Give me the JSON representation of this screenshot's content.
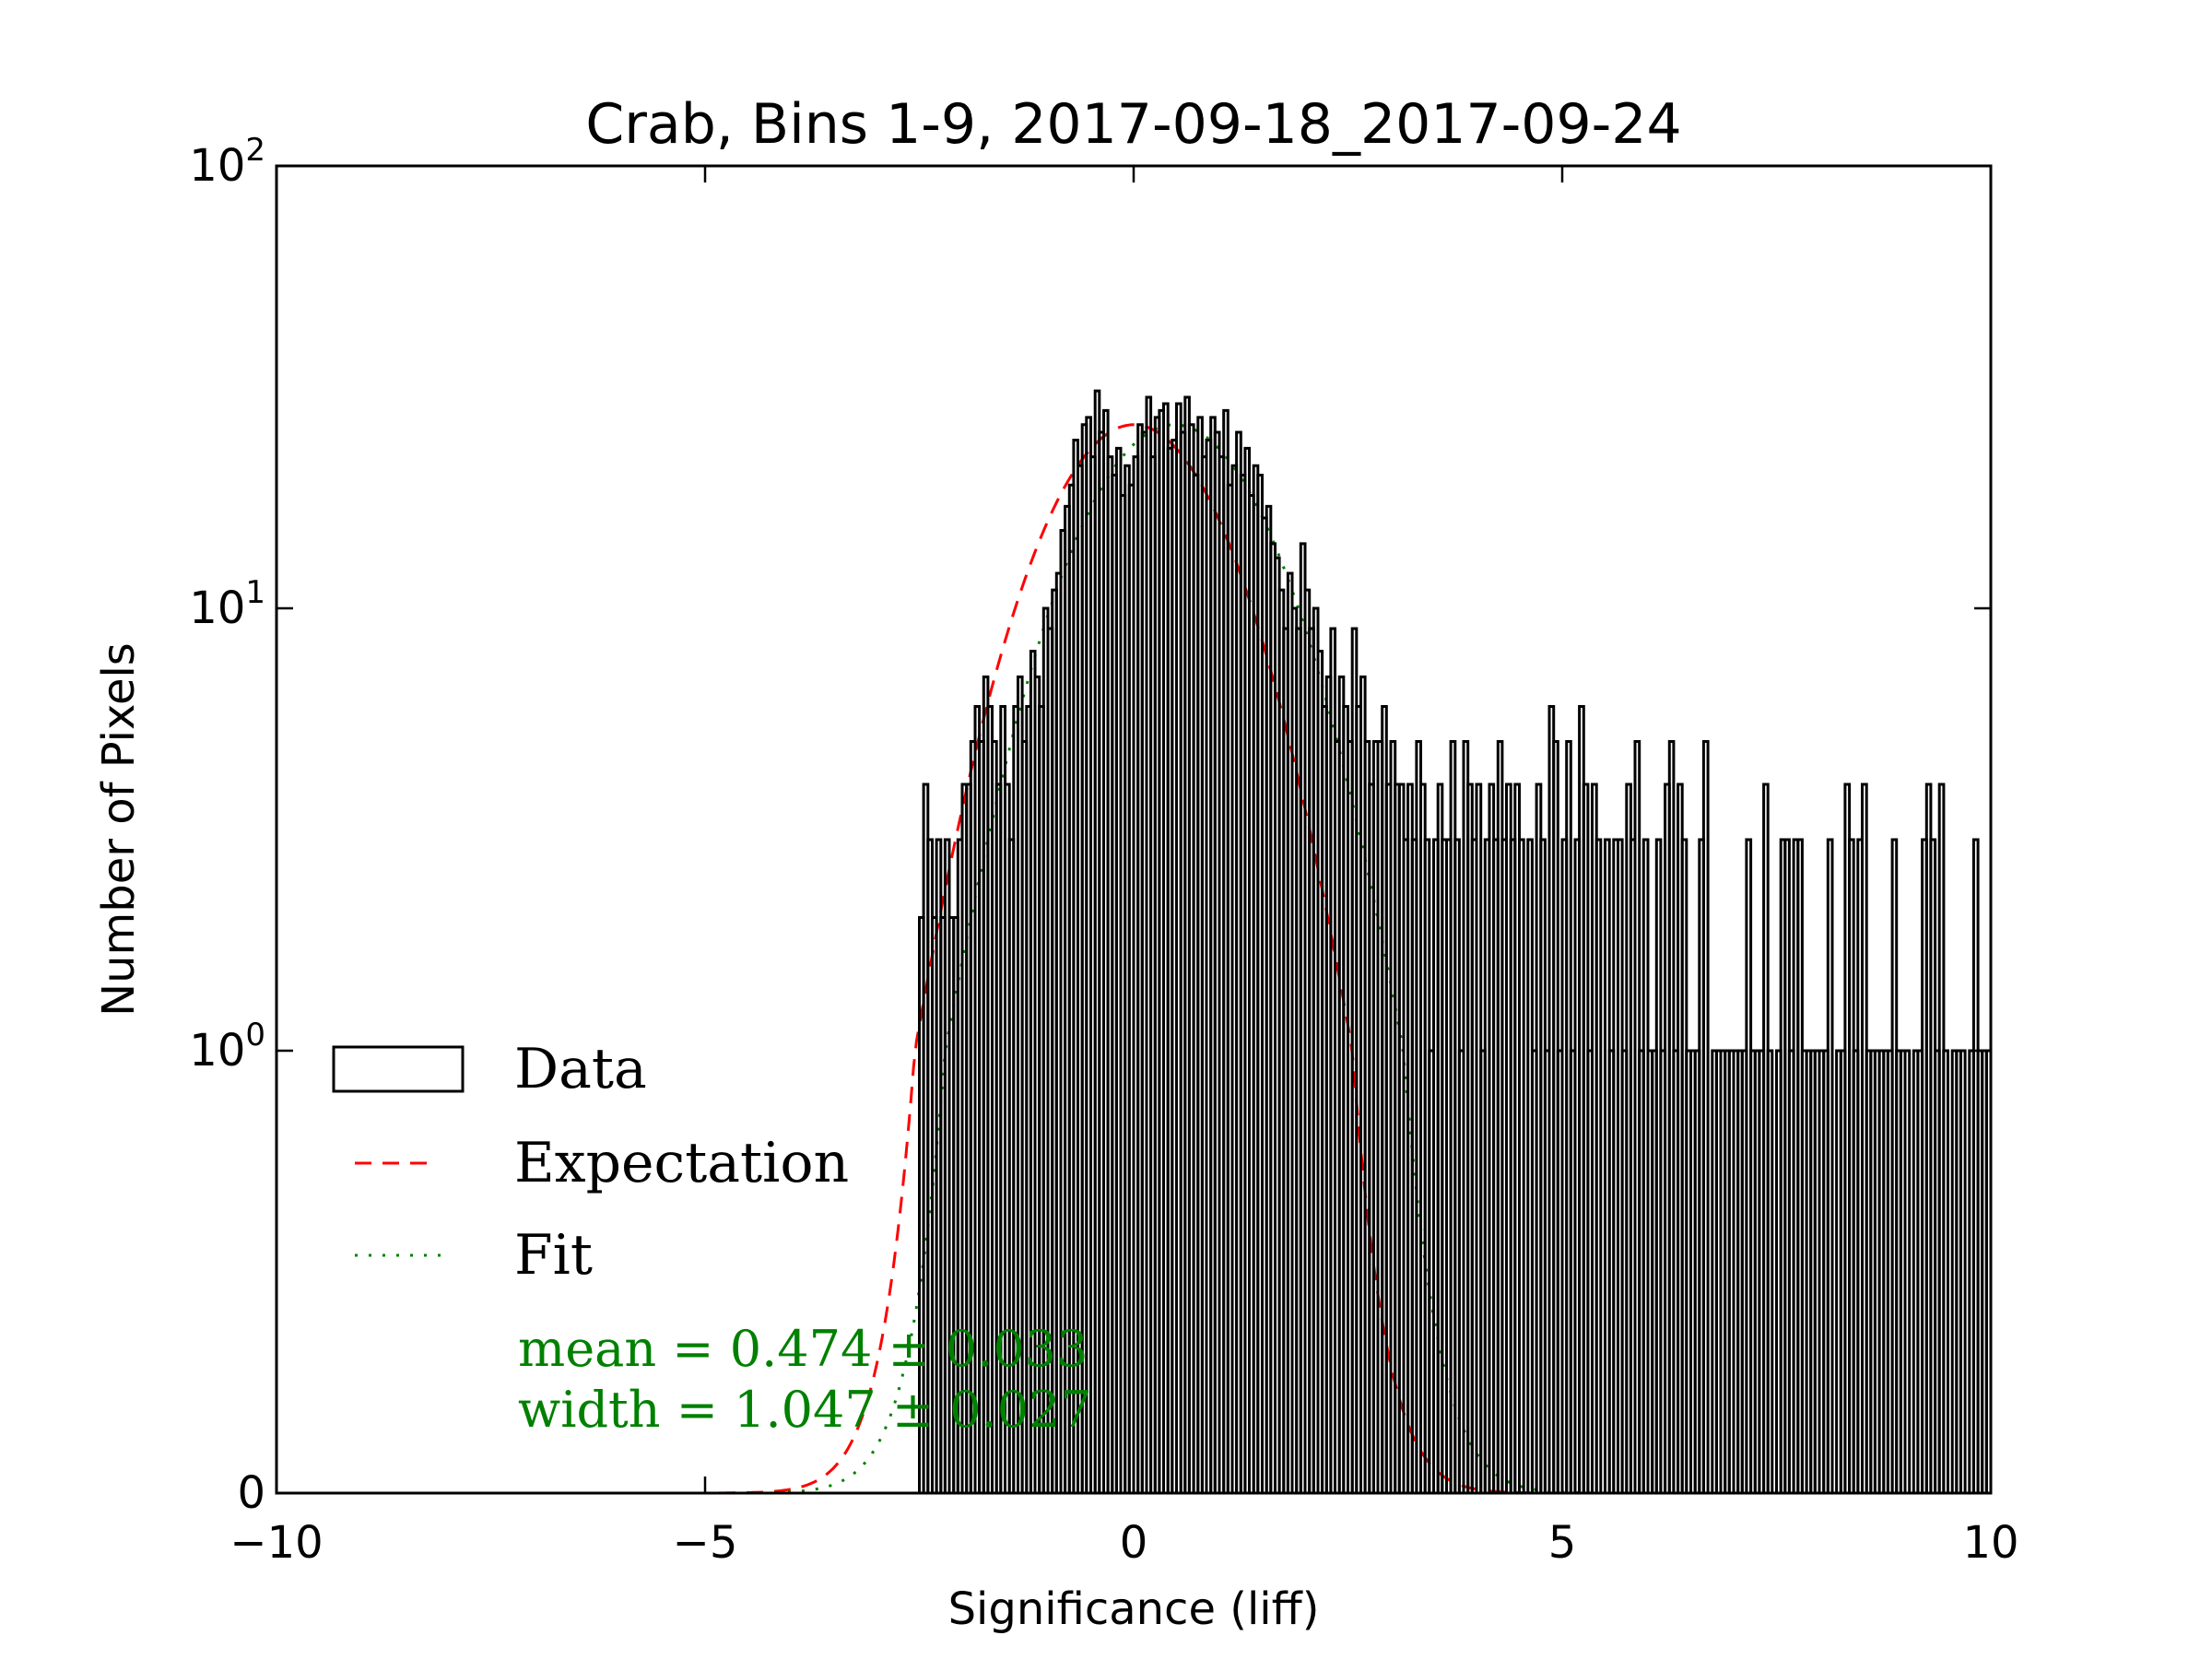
{
  "chart_data": {
    "type": "histogram",
    "title": "Crab, Bins 1-9, 2017-09-18_2017-09-24",
    "xlabel": "Significance (liff)",
    "ylabel": "Number of Pixels",
    "xlim": [
      -10,
      10
    ],
    "yscale": "symlog",
    "ylim": [
      0,
      100
    ],
    "x_ticks": [
      {
        "value": -10,
        "label": "−10"
      },
      {
        "value": -5,
        "label": "−5"
      },
      {
        "value": 0,
        "label": "0"
      },
      {
        "value": 5,
        "label": "5"
      },
      {
        "value": 10,
        "label": "10"
      }
    ],
    "y_ticks": [
      {
        "value": 0,
        "base": "0",
        "exp": ""
      },
      {
        "value": 1,
        "base": "10",
        "exp": "0"
      },
      {
        "value": 10,
        "base": "10",
        "exp": "1"
      },
      {
        "value": 100,
        "base": "10",
        "exp": "2"
      }
    ],
    "legend": {
      "position": "lower-left",
      "entries": [
        {
          "label": "Data",
          "style": "step",
          "color": "#000000"
        },
        {
          "label": "Expectation",
          "style": "dashed",
          "color": "#ff0000"
        },
        {
          "label": "Fit",
          "style": "dashdot",
          "color": "#008000"
        }
      ]
    },
    "annotations": {
      "mean": "mean = 0.474 ± 0.033",
      "width": "width = 1.047 ± 0.027",
      "color": "#008000"
    },
    "series": [
      {
        "name": "Data",
        "kind": "step-histogram",
        "color": "#000000",
        "bin_width": 0.05,
        "bins": [
          [
            -2.5,
            2
          ],
          [
            -2.45,
            4
          ],
          [
            -2.4,
            3
          ],
          [
            -2.35,
            2
          ],
          [
            -2.3,
            3
          ],
          [
            -2.25,
            2
          ],
          [
            -2.2,
            3
          ],
          [
            -2.15,
            2
          ],
          [
            -2.1,
            2
          ],
          [
            -2.05,
            3
          ],
          [
            -2.0,
            4
          ],
          [
            -1.95,
            4
          ],
          [
            -1.9,
            5
          ],
          [
            -1.85,
            6
          ],
          [
            -1.8,
            5
          ],
          [
            -1.75,
            7
          ],
          [
            -1.7,
            6
          ],
          [
            -1.65,
            5
          ],
          [
            -1.6,
            4
          ],
          [
            -1.55,
            6
          ],
          [
            -1.5,
            4
          ],
          [
            -1.45,
            3
          ],
          [
            -1.4,
            6
          ],
          [
            -1.35,
            7
          ],
          [
            -1.3,
            5
          ],
          [
            -1.25,
            6
          ],
          [
            -1.2,
            8
          ],
          [
            -1.15,
            7
          ],
          [
            -1.1,
            6
          ],
          [
            -1.05,
            10
          ],
          [
            -1.0,
            9
          ],
          [
            -0.95,
            11
          ],
          [
            -0.9,
            12
          ],
          [
            -0.85,
            15
          ],
          [
            -0.8,
            17
          ],
          [
            -0.75,
            19
          ],
          [
            -0.7,
            24
          ],
          [
            -0.65,
            21
          ],
          [
            -0.6,
            26
          ],
          [
            -0.55,
            27
          ],
          [
            -0.5,
            22
          ],
          [
            -0.45,
            31
          ],
          [
            -0.4,
            25
          ],
          [
            -0.35,
            28
          ],
          [
            -0.3,
            22
          ],
          [
            -0.25,
            20
          ],
          [
            -0.2,
            23
          ],
          [
            -0.15,
            18
          ],
          [
            -0.1,
            21
          ],
          [
            -0.05,
            19
          ],
          [
            0.0,
            22
          ],
          [
            0.05,
            26
          ],
          [
            0.1,
            25
          ],
          [
            0.15,
            30
          ],
          [
            0.2,
            22
          ],
          [
            0.25,
            27
          ],
          [
            0.3,
            28
          ],
          [
            0.35,
            29
          ],
          [
            0.4,
            23
          ],
          [
            0.45,
            24
          ],
          [
            0.5,
            29
          ],
          [
            0.55,
            25
          ],
          [
            0.6,
            30
          ],
          [
            0.65,
            26
          ],
          [
            0.7,
            20
          ],
          [
            0.75,
            27
          ],
          [
            0.8,
            22
          ],
          [
            0.85,
            24
          ],
          [
            0.9,
            27
          ],
          [
            0.95,
            25
          ],
          [
            1.0,
            22
          ],
          [
            1.05,
            28
          ],
          [
            1.1,
            19
          ],
          [
            1.15,
            21
          ],
          [
            1.2,
            25
          ],
          [
            1.25,
            20
          ],
          [
            1.3,
            23
          ],
          [
            1.35,
            18
          ],
          [
            1.4,
            21
          ],
          [
            1.45,
            20
          ],
          [
            1.5,
            16
          ],
          [
            1.55,
            17
          ],
          [
            1.6,
            14
          ],
          [
            1.65,
            13
          ],
          [
            1.7,
            11
          ],
          [
            1.75,
            9
          ],
          [
            1.8,
            12
          ],
          [
            1.85,
            10
          ],
          [
            1.9,
            9
          ],
          [
            1.95,
            14
          ],
          [
            2.0,
            11
          ],
          [
            2.05,
            9
          ],
          [
            2.1,
            10
          ],
          [
            2.15,
            8
          ],
          [
            2.2,
            6
          ],
          [
            2.25,
            7
          ],
          [
            2.3,
            9
          ],
          [
            2.35,
            5
          ],
          [
            2.4,
            7
          ],
          [
            2.45,
            6
          ],
          [
            2.5,
            5
          ],
          [
            2.55,
            9
          ],
          [
            2.6,
            6
          ],
          [
            2.65,
            7
          ],
          [
            2.7,
            5
          ],
          [
            2.75,
            4
          ],
          [
            2.8,
            5
          ],
          [
            2.85,
            5
          ],
          [
            2.9,
            6
          ],
          [
            2.95,
            4
          ],
          [
            3.0,
            5
          ],
          [
            3.05,
            4
          ],
          [
            3.1,
            4
          ],
          [
            3.15,
            3
          ],
          [
            3.2,
            4
          ],
          [
            3.25,
            3
          ],
          [
            3.3,
            5
          ],
          [
            3.35,
            4
          ],
          [
            3.4,
            3
          ],
          [
            3.45,
            1
          ],
          [
            3.5,
            3
          ],
          [
            3.55,
            4
          ],
          [
            3.6,
            3
          ],
          [
            3.65,
            3
          ],
          [
            3.7,
            5
          ],
          [
            3.75,
            3
          ],
          [
            3.8,
            1
          ],
          [
            3.85,
            5
          ],
          [
            3.9,
            4
          ],
          [
            3.95,
            3
          ],
          [
            4.0,
            4
          ],
          [
            4.05,
            1
          ],
          [
            4.1,
            3
          ],
          [
            4.15,
            4
          ],
          [
            4.2,
            3
          ],
          [
            4.25,
            5
          ],
          [
            4.3,
            3
          ],
          [
            4.35,
            4
          ],
          [
            4.4,
            3
          ],
          [
            4.45,
            4
          ],
          [
            4.5,
            3
          ],
          [
            4.55,
            0
          ],
          [
            4.6,
            3
          ],
          [
            4.65,
            1
          ],
          [
            4.7,
            4
          ],
          [
            4.75,
            3
          ],
          [
            4.8,
            1
          ],
          [
            4.85,
            6
          ],
          [
            4.9,
            5
          ],
          [
            4.95,
            1
          ],
          [
            5.0,
            3
          ],
          [
            5.05,
            5
          ],
          [
            5.1,
            1
          ],
          [
            5.15,
            3
          ],
          [
            5.2,
            6
          ],
          [
            5.25,
            4
          ],
          [
            5.3,
            1
          ],
          [
            5.35,
            4
          ],
          [
            5.4,
            3
          ],
          [
            5.45,
            0
          ],
          [
            5.5,
            3
          ],
          [
            5.55,
            1
          ],
          [
            5.6,
            3
          ],
          [
            5.65,
            3
          ],
          [
            5.7,
            1
          ],
          [
            5.75,
            4
          ],
          [
            5.8,
            3
          ],
          [
            5.85,
            5
          ],
          [
            5.9,
            1
          ],
          [
            5.95,
            3
          ],
          [
            6.0,
            1
          ],
          [
            6.05,
            1
          ],
          [
            6.1,
            3
          ],
          [
            6.15,
            1
          ],
          [
            6.2,
            4
          ],
          [
            6.25,
            5
          ],
          [
            6.3,
            1
          ],
          [
            6.35,
            4
          ],
          [
            6.4,
            3
          ],
          [
            6.45,
            1
          ],
          [
            6.5,
            1
          ],
          [
            6.55,
            1
          ],
          [
            6.6,
            3
          ],
          [
            6.65,
            5
          ],
          [
            6.7,
            0
          ],
          [
            6.75,
            1
          ],
          [
            6.8,
            1
          ],
          [
            6.85,
            1
          ],
          [
            6.9,
            1
          ],
          [
            6.95,
            1
          ],
          [
            7.0,
            1
          ],
          [
            7.05,
            1
          ],
          [
            7.1,
            1
          ],
          [
            7.15,
            3
          ],
          [
            7.2,
            1
          ],
          [
            7.25,
            1
          ],
          [
            7.3,
            1
          ],
          [
            7.35,
            4
          ],
          [
            7.4,
            1
          ],
          [
            7.45,
            0
          ],
          [
            7.5,
            1
          ],
          [
            7.55,
            3
          ],
          [
            7.6,
            3
          ],
          [
            7.65,
            1
          ],
          [
            7.7,
            3
          ],
          [
            7.75,
            3
          ],
          [
            7.8,
            1
          ],
          [
            7.85,
            1
          ],
          [
            7.9,
            1
          ],
          [
            7.95,
            1
          ],
          [
            8.0,
            1
          ],
          [
            8.05,
            1
          ],
          [
            8.1,
            3
          ],
          [
            8.15,
            0
          ],
          [
            8.2,
            1
          ],
          [
            8.25,
            1
          ],
          [
            8.3,
            4
          ],
          [
            8.35,
            3
          ],
          [
            8.4,
            1
          ],
          [
            8.45,
            3
          ],
          [
            8.5,
            4
          ],
          [
            8.55,
            1
          ],
          [
            8.6,
            1
          ],
          [
            8.65,
            1
          ],
          [
            8.7,
            1
          ],
          [
            8.75,
            1
          ],
          [
            8.8,
            1
          ],
          [
            8.85,
            3
          ],
          [
            8.9,
            1
          ],
          [
            8.95,
            1
          ],
          [
            9.0,
            1
          ],
          [
            9.05,
            0
          ],
          [
            9.1,
            1
          ],
          [
            9.15,
            1
          ],
          [
            9.2,
            3
          ],
          [
            9.25,
            4
          ],
          [
            9.3,
            3
          ],
          [
            9.35,
            1
          ],
          [
            9.4,
            4
          ],
          [
            9.45,
            1
          ],
          [
            9.5,
            0
          ],
          [
            9.55,
            1
          ],
          [
            9.6,
            1
          ],
          [
            9.65,
            1
          ],
          [
            9.7,
            0
          ],
          [
            9.75,
            1
          ],
          [
            9.8,
            3
          ],
          [
            9.85,
            1
          ],
          [
            9.9,
            1
          ],
          [
            9.95,
            1
          ]
        ]
      },
      {
        "name": "Expectation",
        "kind": "gaussian-curve",
        "color": "#ff0000",
        "mean": 0.0,
        "width": 1.0,
        "peak": 26,
        "x_range": [
          -10,
          10
        ]
      },
      {
        "name": "Fit",
        "kind": "gaussian-curve",
        "color": "#008000",
        "mean": 0.474,
        "width": 1.047,
        "peak": 26,
        "x_range": [
          -10,
          10
        ]
      }
    ]
  }
}
